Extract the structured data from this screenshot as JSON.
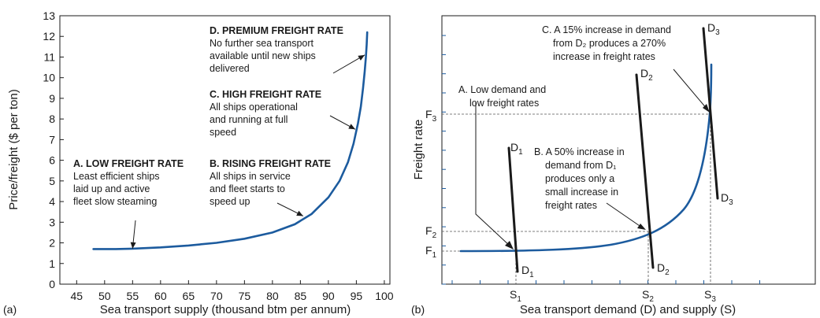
{
  "chart_data": [
    {
      "panel_label": "(a)",
      "type": "line",
      "xlabel": "Sea transport supply (thousand btm per annum)",
      "ylabel": "Price/freight ($ per ton)",
      "xlim": [
        42,
        101
      ],
      "ylim": [
        0,
        13
      ],
      "x_ticks": [
        45,
        50,
        55,
        60,
        65,
        70,
        75,
        80,
        85,
        90,
        95,
        100
      ],
      "y_ticks": [
        0,
        1,
        2,
        3,
        4,
        5,
        6,
        7,
        8,
        9,
        10,
        11,
        12,
        13
      ],
      "grid": false,
      "line_color": "#1c5b9e",
      "series": [
        {
          "x": [
            48,
            52,
            55,
            60,
            65,
            70,
            75,
            80,
            84,
            87,
            90,
            92,
            93.5,
            94.5,
            95.3,
            95.8,
            96.2,
            96.5,
            96.7,
            96.85,
            96.95
          ],
          "y": [
            1.7,
            1.7,
            1.72,
            1.78,
            1.87,
            2.0,
            2.2,
            2.5,
            2.9,
            3.4,
            4.2,
            5.0,
            5.9,
            6.8,
            7.8,
            8.6,
            9.5,
            10.3,
            11.0,
            11.6,
            12.2
          ]
        }
      ],
      "annotations": [
        {
          "title": "A. LOW FREIGHT RATE",
          "lines": [
            "Least efficient ships",
            "laid up and active",
            "fleet slow steaming"
          ],
          "arrow_to": [
            55,
            1.72
          ]
        },
        {
          "title": "B. RISING FREIGHT RATE",
          "lines": [
            "All ships in service",
            "and fleet starts to",
            "speed up"
          ],
          "arrow_to": [
            85.5,
            3.3
          ]
        },
        {
          "title": "C. HIGH FREIGHT RATE",
          "lines": [
            "All ships operational",
            "and running at full",
            "speed"
          ],
          "arrow_to": [
            94.8,
            7.5
          ]
        },
        {
          "title": "D. PREMIUM FREIGHT RATE",
          "lines": [
            "No further sea transport",
            "available until new ships",
            "delivered"
          ],
          "arrow_to": [
            96.5,
            11.1
          ]
        }
      ]
    },
    {
      "panel_label": "(b)",
      "type": "line",
      "xlabel": "Sea transport demand (D) and supply (S)",
      "ylabel": "Freight rate",
      "line_color": "#1c5b9e",
      "grid": false,
      "axis_labels": {
        "y": [
          {
            "base": "F",
            "sub": "3"
          },
          {
            "base": "F",
            "sub": "2"
          },
          {
            "base": "F",
            "sub": "1"
          }
        ],
        "x": [
          {
            "base": "S",
            "sub": "1"
          },
          {
            "base": "S",
            "sub": "2"
          },
          {
            "base": "S",
            "sub": "3"
          }
        ]
      },
      "demand_lines": [
        {
          "top": {
            "base": "D",
            "sub": "1"
          },
          "bottom": {
            "base": "D",
            "sub": "1"
          }
        },
        {
          "top": {
            "base": "D",
            "sub": "2"
          },
          "bottom": {
            "base": "D",
            "sub": "2"
          }
        },
        {
          "top": {
            "base": "D",
            "sub": "3"
          },
          "bottom": {
            "base": "D",
            "sub": "3"
          }
        }
      ],
      "annotations": [
        {
          "lines": [
            "A. Low demand and",
            "low freight rates"
          ]
        },
        {
          "lines": [
            "B. A 50% increase in",
            "demand from D₁",
            "produces only a",
            "small increase in",
            "freight rates"
          ]
        },
        {
          "lines": [
            "C. A 15% increase in demand",
            "from D₂ produces a 270%",
            "increase in freight rates"
          ]
        }
      ]
    }
  ]
}
